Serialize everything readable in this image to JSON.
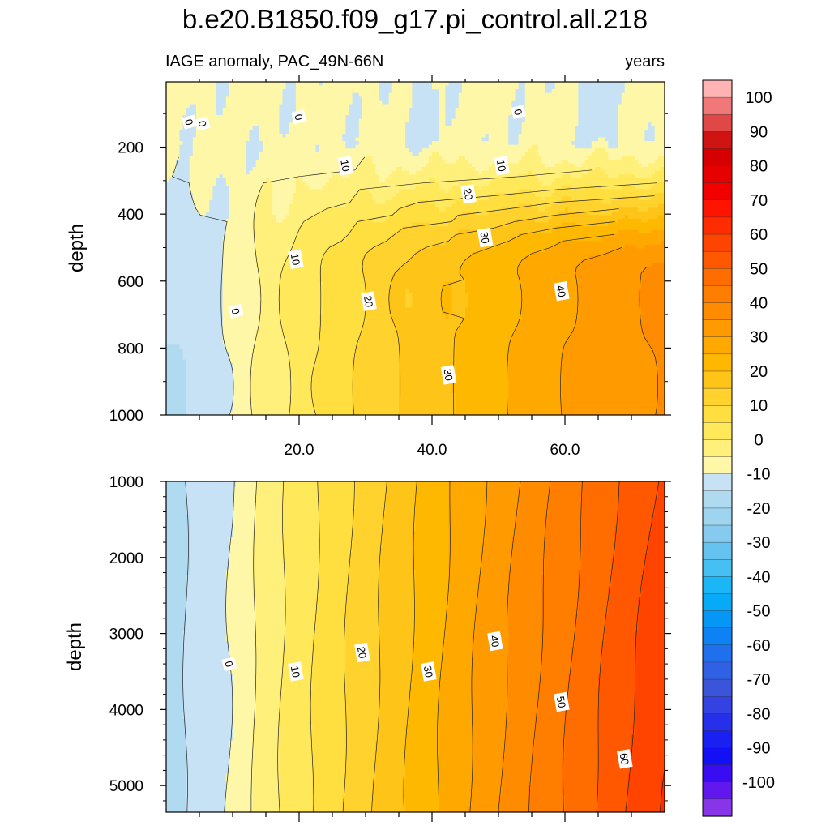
{
  "figure": {
    "title": "b.e20.B1850.f09_g17.pi_control.all.218",
    "subtitle_left": "IAGE anomaly, PAC_49N-66N",
    "subtitle_right": "years"
  },
  "chart_data": [
    {
      "type": "heatmap",
      "panel": "upper",
      "variable": "IAGE anomaly",
      "units": "years",
      "xlabel": "",
      "ylabel": "depth",
      "xlim": [
        0,
        75
      ],
      "ylim": [
        1000,
        5
      ],
      "xticks": [
        20,
        40,
        60
      ],
      "xticklabels": [
        "20.0",
        "40.0",
        "60.0"
      ],
      "yticks": [
        200,
        400,
        600,
        800,
        1000
      ],
      "yticklabels": [
        "200",
        "400",
        "600",
        "800",
        "1000"
      ],
      "contour_labels": [
        {
          "text": "0",
          "x": 3.5,
          "y": 125
        },
        {
          "text": "0",
          "x": 5.5,
          "y": 130
        },
        {
          "text": "0",
          "x": 20,
          "y": 110
        },
        {
          "text": "0",
          "x": 53,
          "y": 95
        },
        {
          "text": "10",
          "x": 27,
          "y": 255
        },
        {
          "text": "10",
          "x": 50.5,
          "y": 255
        },
        {
          "text": "20",
          "x": 45.5,
          "y": 340
        },
        {
          "text": "30",
          "x": 48,
          "y": 470
        },
        {
          "text": "10",
          "x": 19.5,
          "y": 535
        },
        {
          "text": "40",
          "x": 59.5,
          "y": 630
        },
        {
          "text": "20",
          "x": 30.5,
          "y": 660
        },
        {
          "text": "0",
          "x": 10.5,
          "y": 690
        },
        {
          "text": "30",
          "x": 42.5,
          "y": 880
        }
      ],
      "field_profile": {
        "x": [
          0,
          2,
          5,
          10,
          15,
          20,
          25,
          30,
          35,
          40,
          45,
          50,
          55,
          60,
          65,
          70,
          75
        ],
        "deep_values": [
          -5,
          -5,
          -3,
          1,
          7,
          12,
          17,
          21,
          25,
          28,
          31,
          34,
          37,
          40,
          42,
          44,
          46
        ]
      }
    },
    {
      "type": "heatmap",
      "panel": "lower",
      "variable": "IAGE anomaly",
      "units": "years",
      "xlabel": "",
      "ylabel": "depth",
      "xlim": [
        0,
        75
      ],
      "ylim": [
        5350,
        1000
      ],
      "yticks": [
        1000,
        2000,
        3000,
        4000,
        5000
      ],
      "yticklabels": [
        "1000",
        "2000",
        "3000",
        "4000",
        "5000"
      ],
      "contour_labels": [
        {
          "text": "0",
          "x": 9.5,
          "y": 3400
        },
        {
          "text": "10",
          "x": 19.5,
          "y": 3500
        },
        {
          "text": "20",
          "x": 29.5,
          "y": 3250
        },
        {
          "text": "30",
          "x": 39.5,
          "y": 3500
        },
        {
          "text": "40",
          "x": 49.5,
          "y": 3100
        },
        {
          "text": "50",
          "x": 59.5,
          "y": 3900
        },
        {
          "text": "60",
          "x": 69,
          "y": 4650
        }
      ],
      "field_profile": {
        "x": [
          0,
          2,
          5,
          10,
          15,
          20,
          25,
          30,
          35,
          40,
          45,
          50,
          55,
          60,
          65,
          70,
          75
        ],
        "deep_values": [
          -6,
          -6,
          -3,
          0,
          7,
          12,
          17,
          22,
          27,
          32,
          37,
          42,
          47,
          52,
          57,
          62,
          66
        ]
      }
    }
  ],
  "colorbar": {
    "labels": [
      "100",
      "90",
      "80",
      "70",
      "60",
      "50",
      "40",
      "30",
      "20",
      "10",
      "0",
      "-10",
      "-20",
      "-30",
      "-40",
      "-50",
      "-60",
      "-70",
      "-80",
      "-90",
      "-100"
    ],
    "colors": [
      "#ffb3b3",
      "#f07878",
      "#e04848",
      "#d01414",
      "#d60000",
      "#e60000",
      "#f20000",
      "#ff1400",
      "#ff2c00",
      "#ff4400",
      "#ff5800",
      "#ff6c00",
      "#ff7e00",
      "#ff8c00",
      "#ff9a00",
      "#ffa800",
      "#ffb800",
      "#ffc418",
      "#ffd22e",
      "#ffde40",
      "#ffe85a",
      "#fff07c",
      "#fff7a8",
      "#c6e2f4",
      "#b0daf0",
      "#9ed4ee",
      "#86cbef",
      "#66c3f0",
      "#46bff2",
      "#1ab6f6",
      "#06aaf6",
      "#0696f6",
      "#0c82f4",
      "#2070ee",
      "#3060e4",
      "#3a54da",
      "#3342e0",
      "#2630ea",
      "#1a20f2",
      "#1410f6",
      "#3a0cf2",
      "#6018ee",
      "#8834e8"
    ]
  }
}
